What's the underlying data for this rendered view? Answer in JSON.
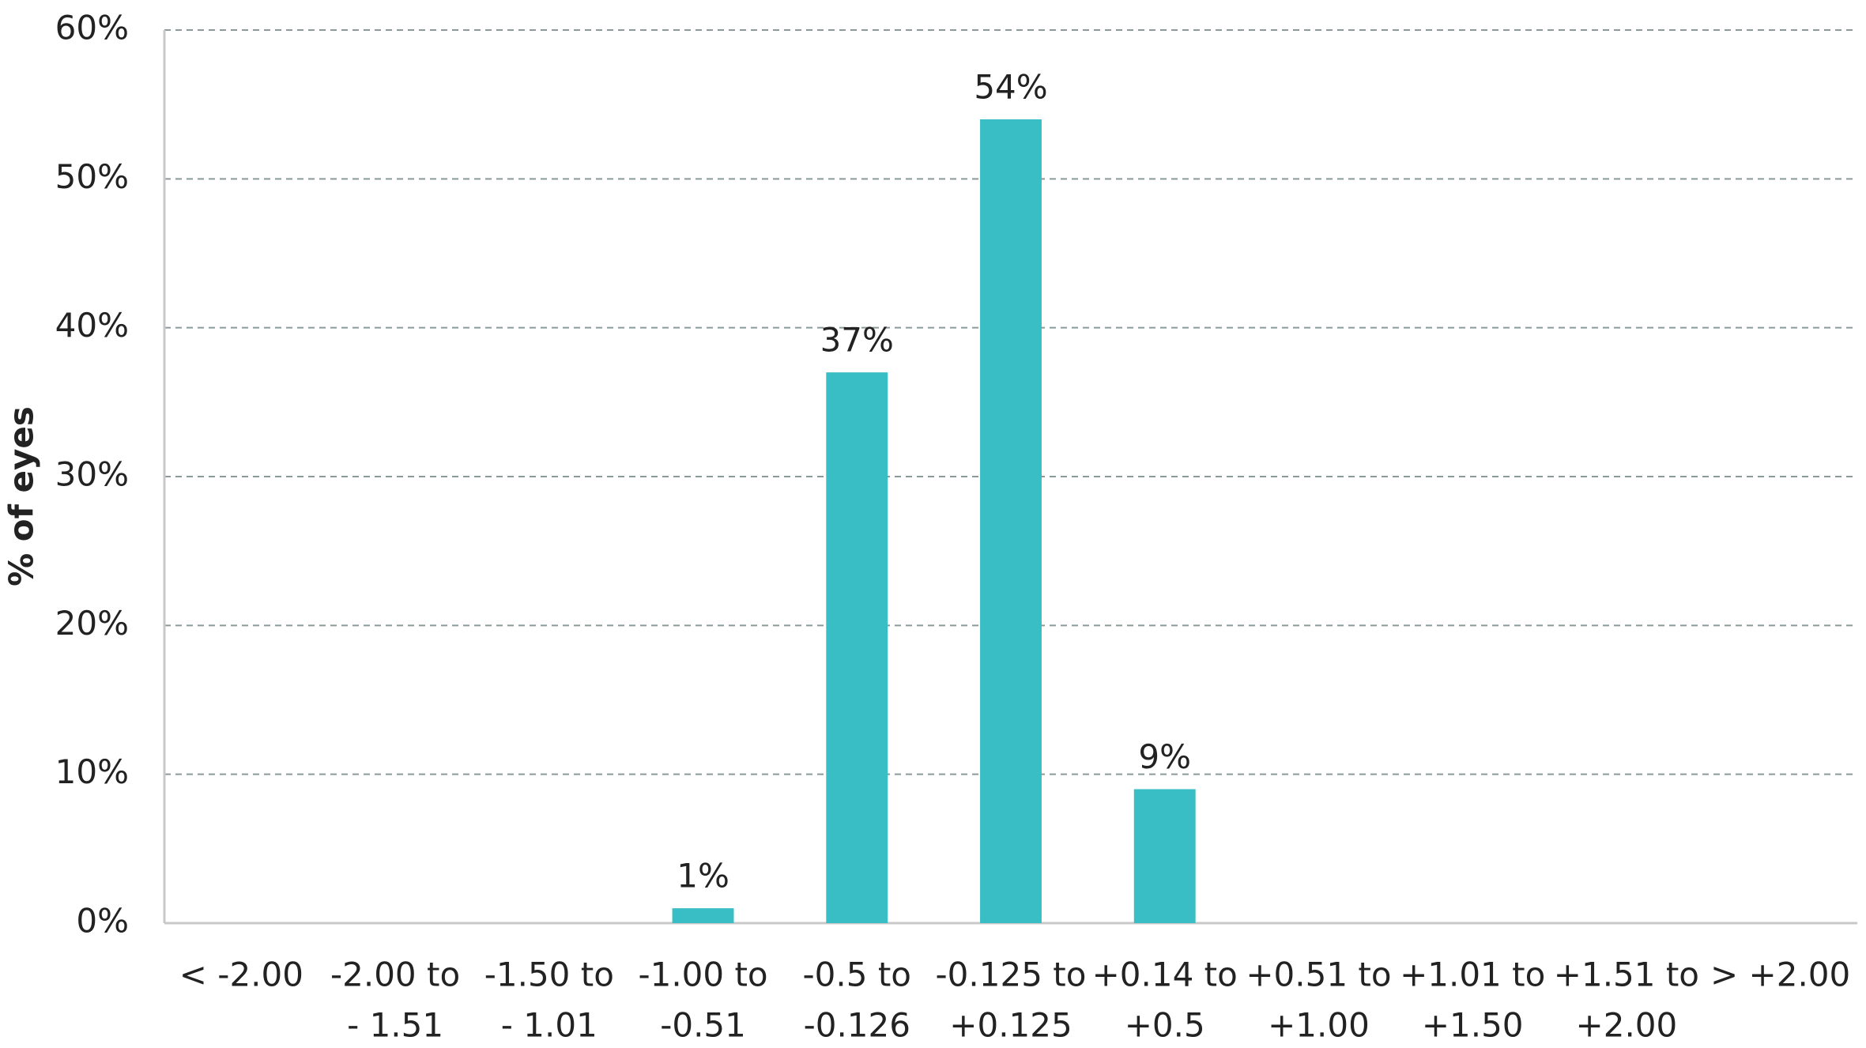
{
  "chart_data": {
    "type": "bar",
    "y_label": "% of eyes",
    "categories": [
      [
        "< -2.00"
      ],
      [
        "-2.00 to",
        "- 1.51"
      ],
      [
        "-1.50 to",
        "- 1.01"
      ],
      [
        "-1.00 to",
        "-0.51"
      ],
      [
        "-0.5 to",
        "-0.126"
      ],
      [
        "-0.125 to",
        "+0.125"
      ],
      [
        "+0.14 to",
        "+0.5"
      ],
      [
        "+0.51 to",
        "+1.00"
      ],
      [
        "+1.01 to",
        "+1.50"
      ],
      [
        "+1.51 to",
        "+2.00"
      ],
      [
        "> +2.00"
      ]
    ],
    "values": [
      0,
      0,
      0,
      1,
      37,
      54,
      9,
      0,
      0,
      0,
      0
    ],
    "value_labels": [
      null,
      null,
      null,
      "1%",
      "37%",
      "54%",
      "9%",
      null,
      null,
      null,
      null
    ],
    "color": "#38bec4",
    "ylim": [
      0,
      60
    ],
    "yticks": [
      {
        "value": 0,
        "label": "0%"
      },
      {
        "value": 10,
        "label": "10%"
      },
      {
        "value": 20,
        "label": "20%"
      },
      {
        "value": 30,
        "label": "30%"
      },
      {
        "value": 40,
        "label": "40%"
      },
      {
        "value": 50,
        "label": "50%"
      },
      {
        "value": 60,
        "label": "60%"
      }
    ],
    "grid": true
  }
}
